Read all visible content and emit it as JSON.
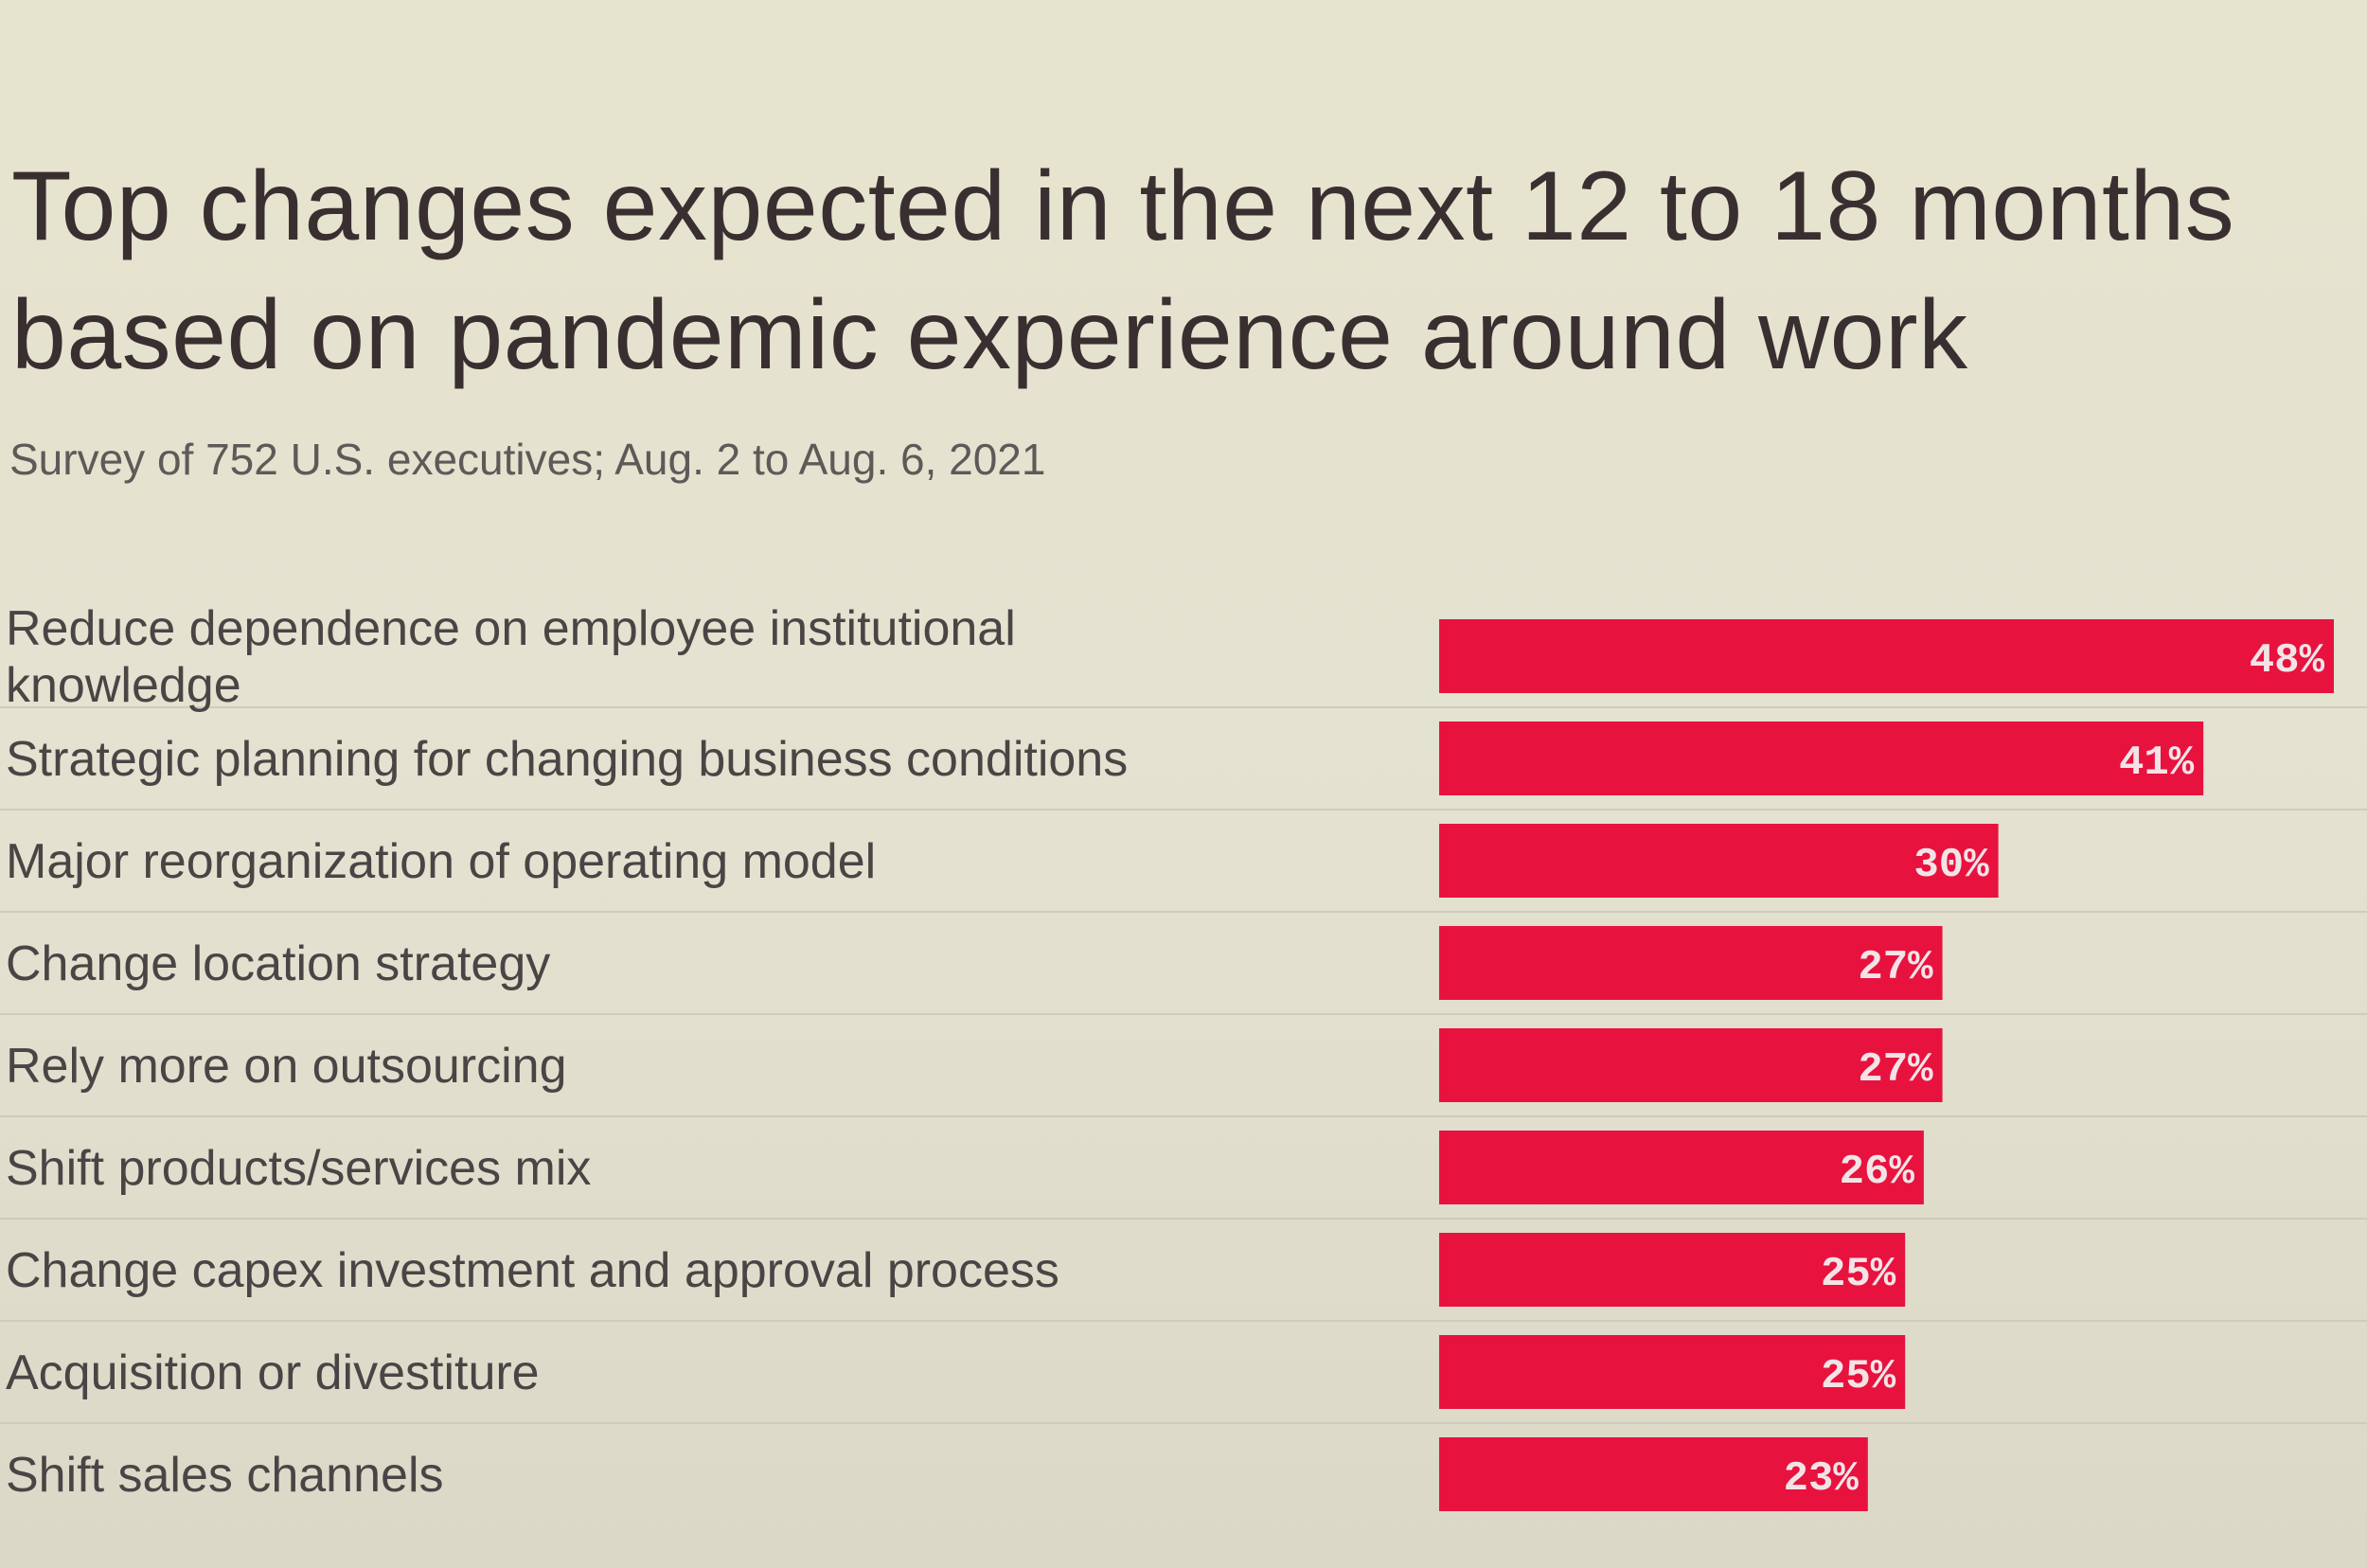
{
  "chart_data": {
    "type": "bar",
    "orientation": "horizontal",
    "title_lines": [
      "Top changes expected in the next 12 to 18 months",
      "based on pandemic experience around work"
    ],
    "subtitle": "Survey of 752 U.S. executives; Aug. 2 to Aug. 6, 2021",
    "categories": [
      [
        "Reduce dependence on employee institutional",
        "knowledge"
      ],
      [
        "Strategic planning for changing business conditions"
      ],
      [
        "Major reorganization of operating model"
      ],
      [
        "Change location strategy"
      ],
      [
        "Rely more on outsourcing"
      ],
      [
        "Shift products/services mix"
      ],
      [
        "Change capex investment and approval process"
      ],
      [
        "Acquisition or divestiture"
      ],
      [
        "Shift sales channels"
      ]
    ],
    "values": [
      48,
      41,
      30,
      27,
      27,
      26,
      25,
      25,
      23
    ],
    "value_labels": [
      "48%",
      "41%",
      "30%",
      "27%",
      "27%",
      "26%",
      "25%",
      "25%",
      "23%"
    ],
    "unit": "%",
    "xlim": [
      0,
      48
    ],
    "bar_color": "#e8123f",
    "grid": false,
    "legend": "none"
  }
}
